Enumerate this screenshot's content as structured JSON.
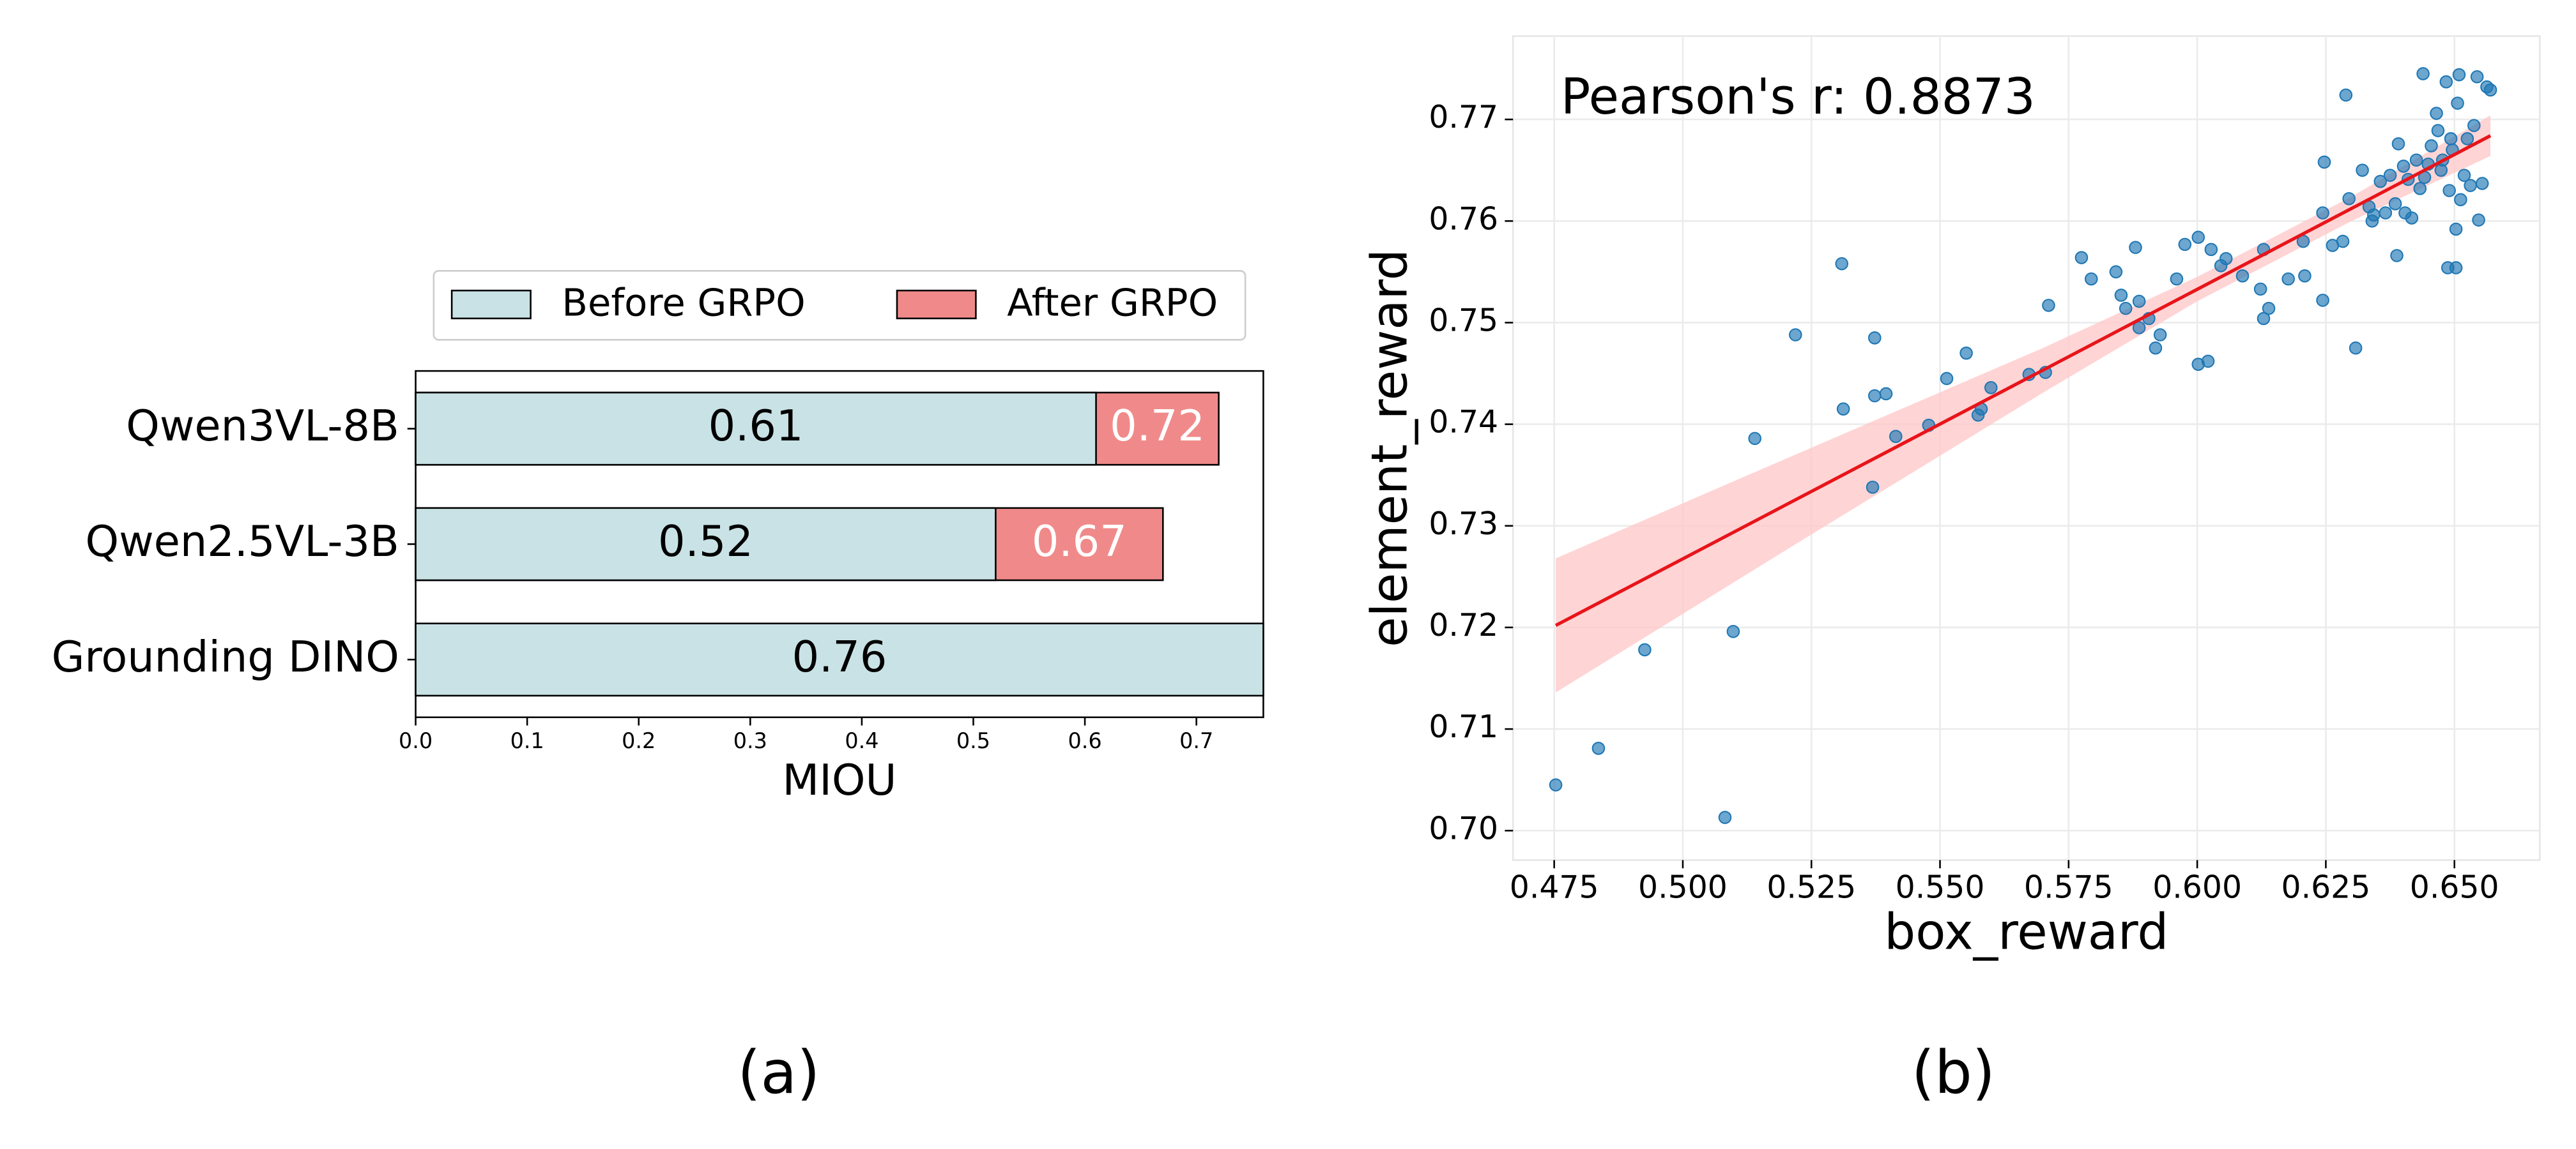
{
  "chart_data": [
    {
      "type": "bar",
      "orientation": "horizontal",
      "caption": "(a)",
      "xlabel": "MIOU",
      "categories": [
        "Qwen3VL-8B",
        "Qwen2.5VL-3B",
        "Grounding DINO"
      ],
      "series": [
        {
          "name": "Before GRPO",
          "color": "#c9e2e5",
          "values": [
            0.61,
            0.52,
            0.76
          ]
        },
        {
          "name": "After GRPO",
          "color": "#f08a8a",
          "values": [
            0.72,
            0.67,
            null
          ]
        }
      ],
      "xlim": [
        0,
        0.76
      ],
      "xticks": [
        {
          "value": 0,
          "label": "0.0"
        },
        0.1,
        0.2,
        0.3,
        0.4,
        0.5,
        0.6,
        0.7
      ],
      "legend": "top"
    },
    {
      "type": "scatter",
      "caption": "(b)",
      "xlabel": "box_reward",
      "ylabel": "element_reward",
      "annotation": "Pearson's r: 0.8873",
      "color": "#1f77b4",
      "grid": true,
      "x": [
        0.4753,
        0.4836,
        0.4926,
        0.5082,
        0.5098,
        0.514,
        0.5219,
        0.5309,
        0.5312,
        0.5369,
        0.5373,
        0.5373,
        0.5395,
        0.5414,
        0.5478,
        0.5513,
        0.5551,
        0.5574,
        0.558,
        0.5599,
        0.5673,
        0.5705,
        0.5711,
        0.5775,
        0.5794,
        0.5842,
        0.5852,
        0.5861,
        0.588,
        0.5887,
        0.5887,
        0.5906,
        0.5919,
        0.5928,
        0.596,
        0.5976,
        0.6002,
        0.6002,
        0.6021,
        0.6027,
        0.6046,
        0.6056,
        0.6088,
        0.6123,
        0.6129,
        0.6129,
        0.6139,
        0.6206,
        0.6209,
        0.6244,
        0.6247,
        0.6244,
        0.6263,
        0.6283,
        0.6295,
        0.6308,
        0.6289,
        0.6321,
        0.6334,
        0.6343,
        0.6356,
        0.6366,
        0.6375,
        0.6385,
        0.6388,
        0.6391,
        0.6401,
        0.6404,
        0.641,
        0.6417,
        0.6426,
        0.6433,
        0.6439,
        0.6442,
        0.6449,
        0.6455,
        0.6465,
        0.6468,
        0.6474,
        0.6477,
        0.6484,
        0.6487,
        0.649,
        0.6493,
        0.6496,
        0.6503,
        0.6506,
        0.6509,
        0.6512,
        0.6519,
        0.6525,
        0.6531,
        0.6538,
        0.6544,
        0.6547,
        0.6554,
        0.6563,
        0.657,
        0.6503,
        0.634,
        0.6177
      ],
      "values": [
        0.7045,
        0.7081,
        0.7178,
        0.7013,
        0.7196,
        0.7386,
        0.7488,
        0.7558,
        0.7415,
        0.7338,
        0.7485,
        0.7428,
        0.743,
        0.7388,
        0.7399,
        0.7445,
        0.747,
        0.7409,
        0.7415,
        0.7436,
        0.7449,
        0.7451,
        0.7517,
        0.7564,
        0.7543,
        0.755,
        0.7527,
        0.7514,
        0.7574,
        0.7495,
        0.7521,
        0.7504,
        0.7475,
        0.7488,
        0.7543,
        0.7577,
        0.7584,
        0.7459,
        0.7462,
        0.7572,
        0.7556,
        0.7563,
        0.7546,
        0.7533,
        0.7572,
        0.7504,
        0.7514,
        0.758,
        0.7546,
        0.7522,
        0.7658,
        0.7608,
        0.7576,
        0.758,
        0.7622,
        0.7475,
        0.7724,
        0.765,
        0.7614,
        0.7606,
        0.7639,
        0.7608,
        0.7645,
        0.7617,
        0.7566,
        0.7676,
        0.7654,
        0.7608,
        0.7641,
        0.7603,
        0.766,
        0.7632,
        0.7745,
        0.7643,
        0.7656,
        0.7674,
        0.7706,
        0.7689,
        0.765,
        0.766,
        0.7737,
        0.7554,
        0.763,
        0.7681,
        0.767,
        0.7592,
        0.7716,
        0.7744,
        0.7621,
        0.7645,
        0.7681,
        0.7635,
        0.7694,
        0.7742,
        0.7601,
        0.7637,
        0.7732,
        0.7729,
        0.7554,
        0.76,
        0.7543
      ],
      "fit": {
        "color": "#e8141a",
        "x": [
          0.4753,
          0.657
        ],
        "y": [
          0.7202,
          0.7684
        ]
      },
      "band": {
        "color": "#ffc9c9",
        "x": [
          0.4753,
          0.52,
          0.57,
          0.6,
          0.63,
          0.657
        ],
        "lower": [
          0.7136,
          0.7276,
          0.7431,
          0.7521,
          0.76,
          0.7664
        ],
        "upper": [
          0.7268,
          0.7366,
          0.7475,
          0.7545,
          0.7624,
          0.7704
        ]
      },
      "xlim": [
        0.467,
        0.6666
      ],
      "ylim": [
        0.6971,
        0.7782
      ],
      "xticks": [
        0.475,
        {
          "value": 0.5,
          "label": "0.500"
        },
        0.525,
        {
          "value": 0.55,
          "label": "0.550"
        },
        0.575,
        {
          "value": 0.6,
          "label": "0.600"
        },
        0.625,
        {
          "value": 0.65,
          "label": "0.650"
        }
      ],
      "yticks": [
        {
          "value": 0.7,
          "label": "0.70"
        },
        0.71,
        0.72,
        0.73,
        0.74,
        0.75,
        0.76,
        0.77
      ]
    }
  ]
}
